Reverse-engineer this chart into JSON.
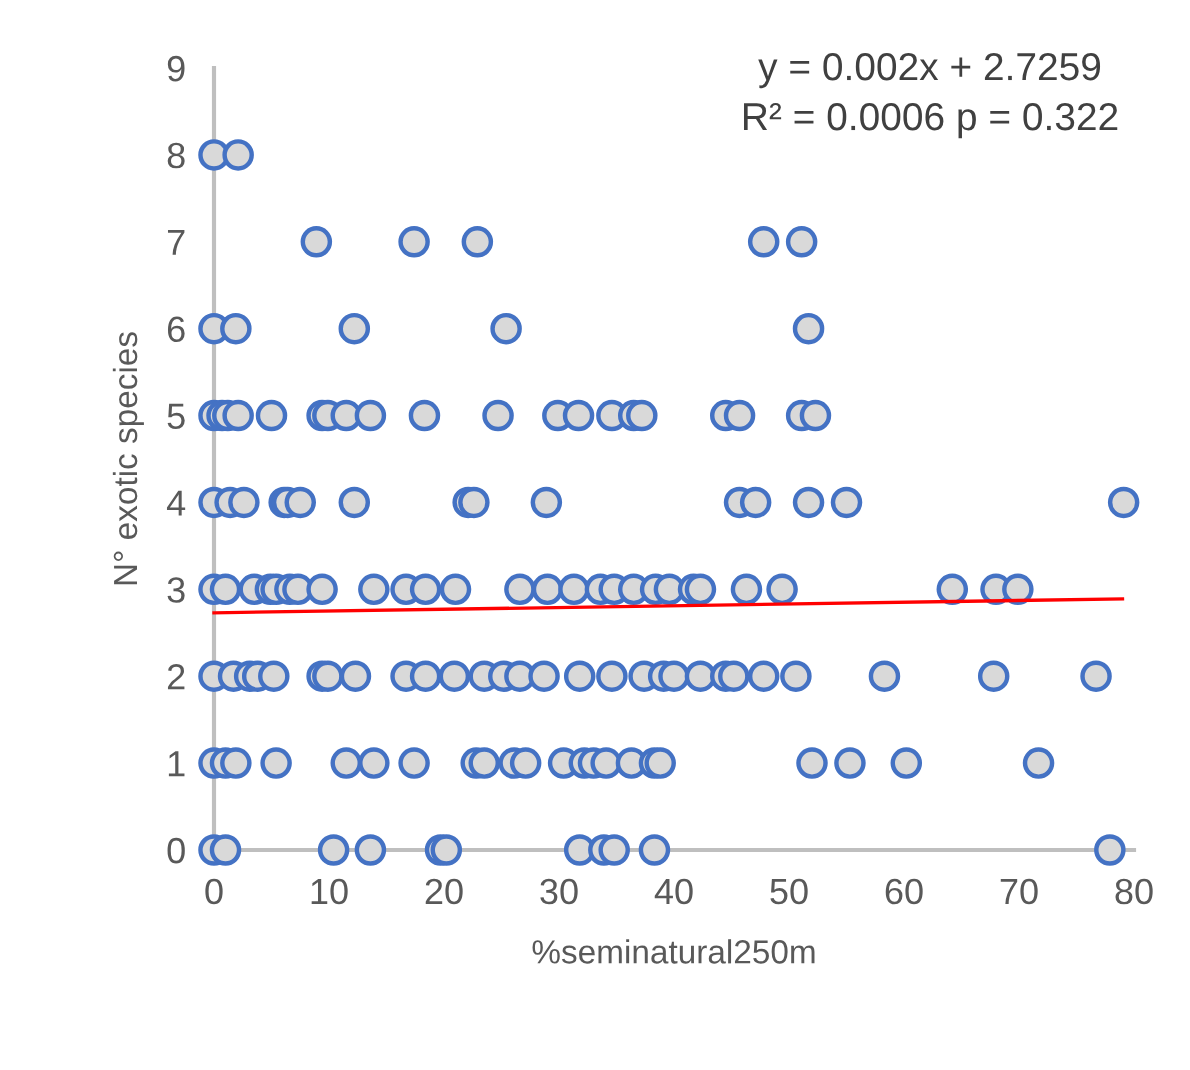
{
  "chart_data": {
    "type": "scatter",
    "xlabel": "%seminatural250m",
    "ylabel": "N° exotic species",
    "annotations": [
      "y = 0.002x + 2.7259",
      "R² = 0.0006 p = 0.322"
    ],
    "xlim": [
      0,
      80
    ],
    "xticks": [
      0,
      10,
      20,
      30,
      40,
      50,
      60,
      70,
      80
    ],
    "ylim": [
      0,
      9
    ],
    "yticks": [
      0,
      1,
      2,
      3,
      4,
      5,
      6,
      7,
      8,
      9
    ],
    "grid": false,
    "legend": false,
    "marker": "circle",
    "series": [
      {
        "color": "#d9d9d9",
        "x": [
          0,
          2.1,
          8.9,
          17.4,
          22.9,
          47.8,
          51.1,
          0,
          1.9,
          12.2,
          25.4,
          51.7,
          0,
          0.7,
          1.2,
          2.1,
          5.0,
          9.4,
          9.9,
          11.5,
          13.6,
          18.3,
          24.7,
          29.9,
          31.7,
          34.6,
          36.5,
          37.2,
          44.5,
          45.7,
          51.1,
          52.3,
          0,
          1.4,
          2.6,
          6.1,
          6.4,
          7.5,
          12.2,
          22.1,
          22.6,
          28.9,
          45.7,
          47.1,
          51.7,
          55.0,
          79.1,
          0,
          1.0,
          3.5,
          4.9,
          5.4,
          6.6,
          7.3,
          9.4,
          13.9,
          16.7,
          18.4,
          21.0,
          26.6,
          29.0,
          31.3,
          33.6,
          34.8,
          36.5,
          38.4,
          39.6,
          41.7,
          42.3,
          46.3,
          49.4,
          64.2,
          68.0,
          69.9,
          0,
          1.7,
          3.1,
          3.8,
          5.2,
          9.4,
          9.9,
          12.3,
          16.7,
          18.4,
          20.9,
          23.5,
          25.2,
          26.6,
          28.7,
          31.8,
          34.6,
          37.4,
          39.1,
          40.0,
          42.3,
          44.5,
          45.2,
          47.8,
          50.6,
          58.3,
          67.8,
          76.7,
          0,
          1.0,
          1.9,
          5.4,
          11.5,
          13.9,
          17.4,
          22.8,
          23.5,
          26.1,
          27.1,
          30.4,
          32.2,
          33.0,
          34.1,
          36.3,
          38.3,
          38.8,
          52.0,
          55.3,
          60.2,
          71.7,
          0,
          1.0,
          10.4,
          13.6,
          19.7,
          20.2,
          31.8,
          33.9,
          34.8,
          38.3,
          77.9
        ],
        "values": [
          8,
          8,
          7,
          7,
          7,
          7,
          7,
          6,
          6,
          6,
          6,
          6,
          5,
          5,
          5,
          5,
          5,
          5,
          5,
          5,
          5,
          5,
          5,
          5,
          5,
          5,
          5,
          5,
          5,
          5,
          5,
          5,
          4,
          4,
          4,
          4,
          4,
          4,
          4,
          4,
          4,
          4,
          4,
          4,
          4,
          4,
          4,
          3,
          3,
          3,
          3,
          3,
          3,
          3,
          3,
          3,
          3,
          3,
          3,
          3,
          3,
          3,
          3,
          3,
          3,
          3,
          3,
          3,
          3,
          3,
          3,
          3,
          3,
          3,
          2,
          2,
          2,
          2,
          2,
          2,
          2,
          2,
          2,
          2,
          2,
          2,
          2,
          2,
          2,
          2,
          2,
          2,
          2,
          2,
          2,
          2,
          2,
          2,
          2,
          2,
          2,
          2,
          1,
          1,
          1,
          1,
          1,
          1,
          1,
          1,
          1,
          1,
          1,
          1,
          1,
          1,
          1,
          1,
          1,
          1,
          1,
          1,
          1,
          1,
          0,
          0,
          0,
          0,
          0,
          0,
          0,
          0,
          0,
          0,
          0
        ]
      },
      {
        "type": "line",
        "color": "#ff0000",
        "x": [
          0,
          79
        ],
        "values": [
          2.73,
          2.89
        ],
        "line_style": "solid",
        "marker": "none"
      }
    ]
  }
}
